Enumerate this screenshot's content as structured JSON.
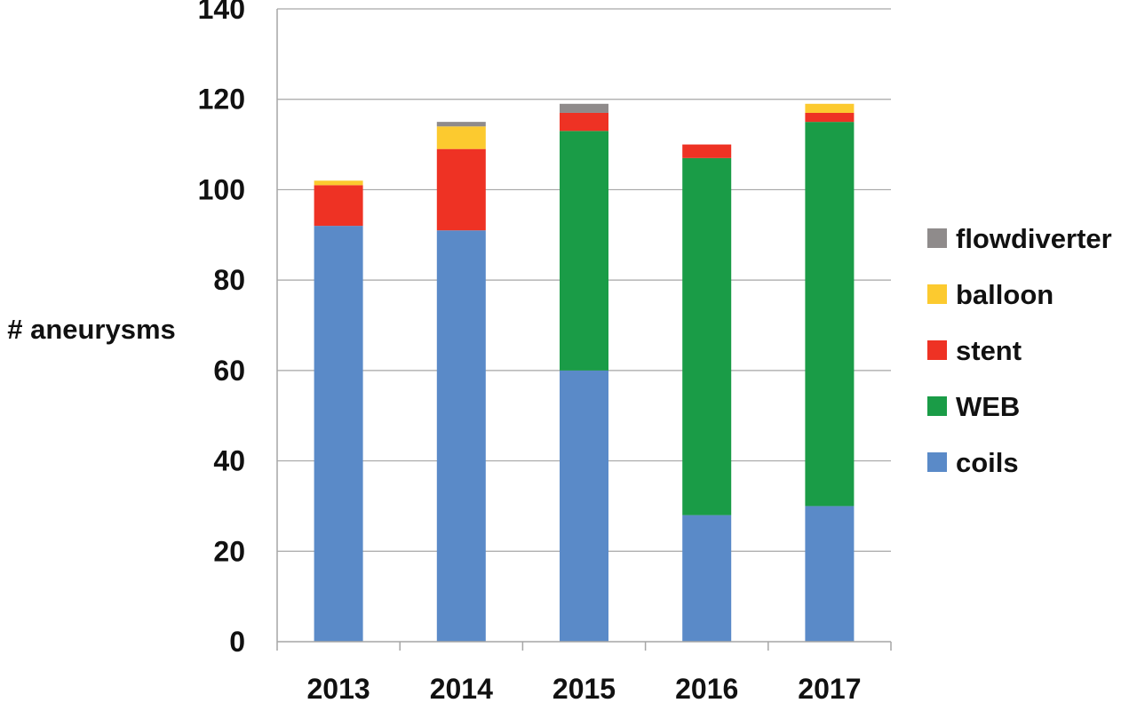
{
  "chart_data": {
    "type": "bar",
    "stacked": true,
    "title": "",
    "xlabel": "",
    "ylabel": "# aneurysms",
    "ylim": [
      0,
      140
    ],
    "yticks": [
      0,
      20,
      40,
      60,
      80,
      100,
      120,
      140
    ],
    "ytick_labels": [
      "0",
      "20",
      "40",
      "60",
      "80",
      "100",
      "120",
      "140"
    ],
    "grid": "horizontal",
    "legend_position": "right",
    "categories": [
      "2013",
      "2014",
      "2015",
      "2016",
      "2017"
    ],
    "series": [
      {
        "name": "coils",
        "color": "#5A8AC8",
        "values": [
          92,
          91,
          60,
          28,
          30
        ]
      },
      {
        "name": "WEB",
        "color": "#1A9C47",
        "values": [
          0,
          0,
          53,
          79,
          85
        ]
      },
      {
        "name": "stent",
        "color": "#EE3224",
        "values": [
          9,
          18,
          4,
          3,
          2
        ]
      },
      {
        "name": "balloon",
        "color": "#FCCA2F",
        "values": [
          1,
          5,
          0,
          0,
          2
        ]
      },
      {
        "name": "flowdiverter",
        "color": "#8F8B8B",
        "values": [
          0,
          1,
          2,
          0,
          0
        ]
      }
    ]
  }
}
